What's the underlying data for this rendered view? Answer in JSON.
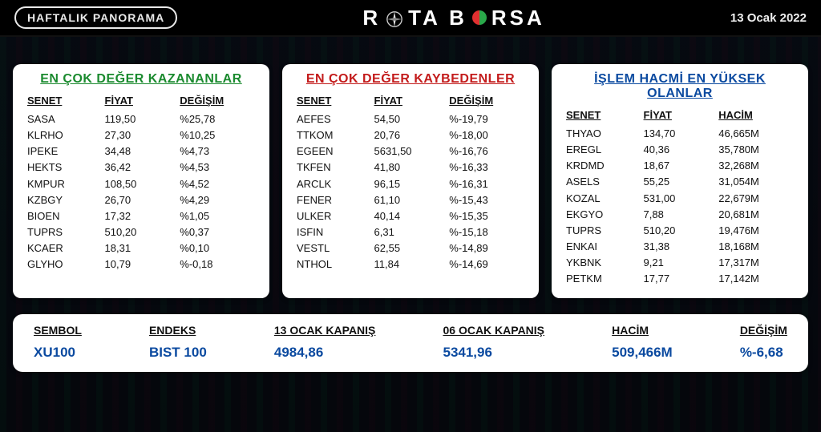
{
  "header": {
    "badge": "HAFTALIK  PANORAMA",
    "logo_left": "R",
    "logo_mid1": "TA B",
    "logo_right": "RSA",
    "date": "13 Ocak 2022"
  },
  "colors": {
    "gainers_title": "#1a8a2e",
    "losers_title": "#c31b1b",
    "volume_title": "#0b4aa0",
    "panel_bg": "#ffffff",
    "page_bg": "#0a0f1a",
    "footer_value": "#0b4aa0",
    "text": "#111111"
  },
  "typography": {
    "title_fontsize_pt": 12,
    "header_fontsize_pt": 10,
    "row_fontsize_pt": 10,
    "footer_label_pt": 11,
    "footer_value_pt": 13
  },
  "panels": {
    "gainers": {
      "title": "EN ÇOK DEĞER KAZANANLAR",
      "columns": [
        "SENET",
        "FİYAT",
        "DEĞİŞİM"
      ],
      "rows": [
        [
          "SASA",
          "119,50",
          "%25,78"
        ],
        [
          "KLRHO",
          "27,30",
          "%10,25"
        ],
        [
          "IPEKE",
          "34,48",
          "%4,73"
        ],
        [
          "HEKTS",
          "36,42",
          "%4,53"
        ],
        [
          "KMPUR",
          "108,50",
          "%4,52"
        ],
        [
          "KZBGY",
          "26,70",
          "%4,29"
        ],
        [
          "BIOEN",
          "17,32",
          "%1,05"
        ],
        [
          "TUPRS",
          "510,20",
          "%0,37"
        ],
        [
          "KCAER",
          "18,31",
          "%0,10"
        ],
        [
          "GLYHO",
          "10,79",
          "%-0,18"
        ]
      ]
    },
    "losers": {
      "title": "EN ÇOK DEĞER KAYBEDENLER",
      "columns": [
        "SENET",
        "FİYAT",
        "DEĞİŞİM"
      ],
      "rows": [
        [
          "AEFES",
          "54,50",
          "%-19,79"
        ],
        [
          "TTKOM",
          "20,76",
          "%-18,00"
        ],
        [
          "EGEEN",
          "5631,50",
          "%-16,76"
        ],
        [
          "TKFEN",
          "41,80",
          "%-16,33"
        ],
        [
          "ARCLK",
          "96,15",
          "%-16,31"
        ],
        [
          "FENER",
          "61,10",
          "%-15,43"
        ],
        [
          "ULKER",
          "40,14",
          "%-15,35"
        ],
        [
          "ISFIN",
          "6,31",
          "%-15,18"
        ],
        [
          "VESTL",
          "62,55",
          "%-14,89"
        ],
        [
          "NTHOL",
          "11,84",
          "%-14,69"
        ]
      ]
    },
    "volume": {
      "title": "İŞLEM HACMİ EN YÜKSEK OLANLAR",
      "columns": [
        "SENET",
        "FİYAT",
        "HACİM"
      ],
      "rows": [
        [
          "THYAO",
          "134,70",
          "46,665M"
        ],
        [
          "EREGL",
          "40,36",
          "35,780M"
        ],
        [
          "KRDMD",
          "18,67",
          "32,268M"
        ],
        [
          "ASELS",
          "55,25",
          "31,054M"
        ],
        [
          "KOZAL",
          "531,00",
          "22,679M"
        ],
        [
          "EKGYO",
          "7,88",
          "20,681M"
        ],
        [
          "TUPRS",
          "510,20",
          "19,476M"
        ],
        [
          "ENKAI",
          "31,38",
          "18,168M"
        ],
        [
          "YKBNK",
          "9,21",
          "17,317M"
        ],
        [
          "PETKM",
          "17,77",
          "17,142M"
        ]
      ]
    }
  },
  "footer": {
    "items": [
      {
        "label": "SEMBOL",
        "value": "XU100"
      },
      {
        "label": "ENDEKS",
        "value": "BIST 100"
      },
      {
        "label": "13 OCAK KAPANIŞ",
        "value": "4984,86"
      },
      {
        "label": "06 OCAK KAPANIŞ",
        "value": "5341,96"
      },
      {
        "label": "HACİM",
        "value": "509,466M"
      },
      {
        "label": "DEĞİŞİM ",
        "value": "%-6,68"
      }
    ]
  }
}
